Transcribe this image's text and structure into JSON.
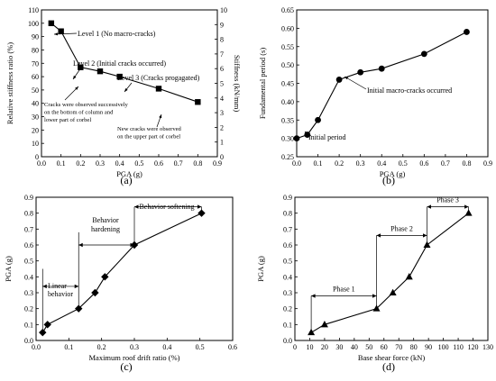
{
  "chart_data": [
    {
      "panel": "(a)",
      "type": "line",
      "xlabel": "PGA (g)",
      "ylabel": "Relative stiffness ratio (%)",
      "ylabel_right": "Stiffness (kN/mm)",
      "xlim": [
        0,
        0.9
      ],
      "ylim": [
        0,
        110
      ],
      "ylim_right": [
        0,
        10
      ],
      "xticks": [
        "0.0",
        "0.1",
        "0.2",
        "0.3",
        "0.4",
        "0.5",
        "0.6",
        "0.7",
        "0.8",
        "0.9"
      ],
      "yticks": [
        "0",
        "10",
        "20",
        "30",
        "40",
        "50",
        "60",
        "70",
        "80",
        "90",
        "100",
        "110"
      ],
      "yticks_right": [
        "0",
        "1",
        "2",
        "3",
        "4",
        "5",
        "6",
        "7",
        "8",
        "9",
        "10"
      ],
      "marker": "square",
      "x": [
        0.05,
        0.1,
        0.2,
        0.3,
        0.4,
        0.6,
        0.8
      ],
      "y": [
        100,
        94,
        67,
        64,
        60,
        51,
        41
      ],
      "annotations": [
        {
          "lines": [
            "Level 1 (No macro-cracks)"
          ]
        },
        {
          "lines": [
            "Level 2 (Initial cracks occurred)"
          ]
        },
        {
          "lines": [
            "Level 3 (Cracks progagated)"
          ]
        },
        {
          "lines": [
            "Cracks were observed successively",
            "on the bottom of column and",
            "lower part of corbel"
          ]
        },
        {
          "lines": [
            "New cracks were observed",
            "on the upper part of corbel"
          ]
        }
      ]
    },
    {
      "panel": "(b)",
      "type": "line",
      "xlabel": "PGA (g)",
      "ylabel": "Fundamental period (s)",
      "xlim": [
        0,
        0.9
      ],
      "ylim": [
        0.25,
        0.65
      ],
      "xticks": [
        "0.0",
        "0.1",
        "0.2",
        "0.3",
        "0.4",
        "0.5",
        "0.6",
        "0.7",
        "0.8",
        "0.9"
      ],
      "yticks": [
        "0.25",
        "0.30",
        "0.35",
        "0.40",
        "0.45",
        "0.50",
        "0.55",
        "0.60",
        "0.65"
      ],
      "marker": "circle",
      "x": [
        0,
        0.05,
        0.1,
        0.2,
        0.3,
        0.4,
        0.6,
        0.8
      ],
      "y": [
        0.3,
        0.31,
        0.35,
        0.46,
        0.48,
        0.49,
        0.53,
        0.59
      ],
      "annotations": [
        {
          "lines": [
            "Initial period"
          ]
        },
        {
          "lines": [
            "Initial macro-cracks occurred"
          ]
        }
      ]
    },
    {
      "panel": "(c)",
      "type": "line",
      "xlabel": "Maximum roof drift ratio (%)",
      "ylabel": "PGA (g)",
      "xlim": [
        0,
        0.6
      ],
      "ylim": [
        0,
        0.9
      ],
      "xticks": [
        "0.0",
        "0.1",
        "0.2",
        "0.3",
        "0.4",
        "0.5",
        "0.6"
      ],
      "yticks": [
        "0.0",
        "0.1",
        "0.2",
        "0.3",
        "0.4",
        "0.5",
        "0.6",
        "0.7",
        "0.8",
        "0.9"
      ],
      "marker": "diamond",
      "x": [
        0.02,
        0.035,
        0.13,
        0.18,
        0.21,
        0.3,
        0.505
      ],
      "y": [
        0.05,
        0.1,
        0.2,
        0.3,
        0.4,
        0.6,
        0.8
      ],
      "annotations": [
        {
          "lines": [
            "Linear",
            "behavior"
          ]
        },
        {
          "lines": [
            "Behavior",
            "hardening"
          ]
        },
        {
          "lines": [
            "Behavior softening"
          ]
        }
      ]
    },
    {
      "panel": "(d)",
      "type": "line",
      "xlabel": "Base shear force (kN)",
      "ylabel": "PGA (g)",
      "xlim": [
        0,
        130
      ],
      "ylim": [
        0,
        0.9
      ],
      "xticks": [
        "0",
        "10",
        "20",
        "30",
        "40",
        "50",
        "60",
        "70",
        "80",
        "90",
        "100",
        "110",
        "120",
        "130"
      ],
      "yticks": [
        "0.0",
        "0.1",
        "0.2",
        "0.3",
        "0.4",
        "0.5",
        "0.6",
        "0.7",
        "0.8",
        "0.9"
      ],
      "marker": "triangle",
      "x": [
        11,
        20,
        55,
        66,
        77,
        89,
        117
      ],
      "y": [
        0.05,
        0.1,
        0.2,
        0.3,
        0.4,
        0.6,
        0.8
      ],
      "annotations": [
        {
          "lines": [
            "Phase 1"
          ]
        },
        {
          "lines": [
            "Phase 2"
          ]
        },
        {
          "lines": [
            "Phase 3"
          ]
        }
      ]
    }
  ]
}
